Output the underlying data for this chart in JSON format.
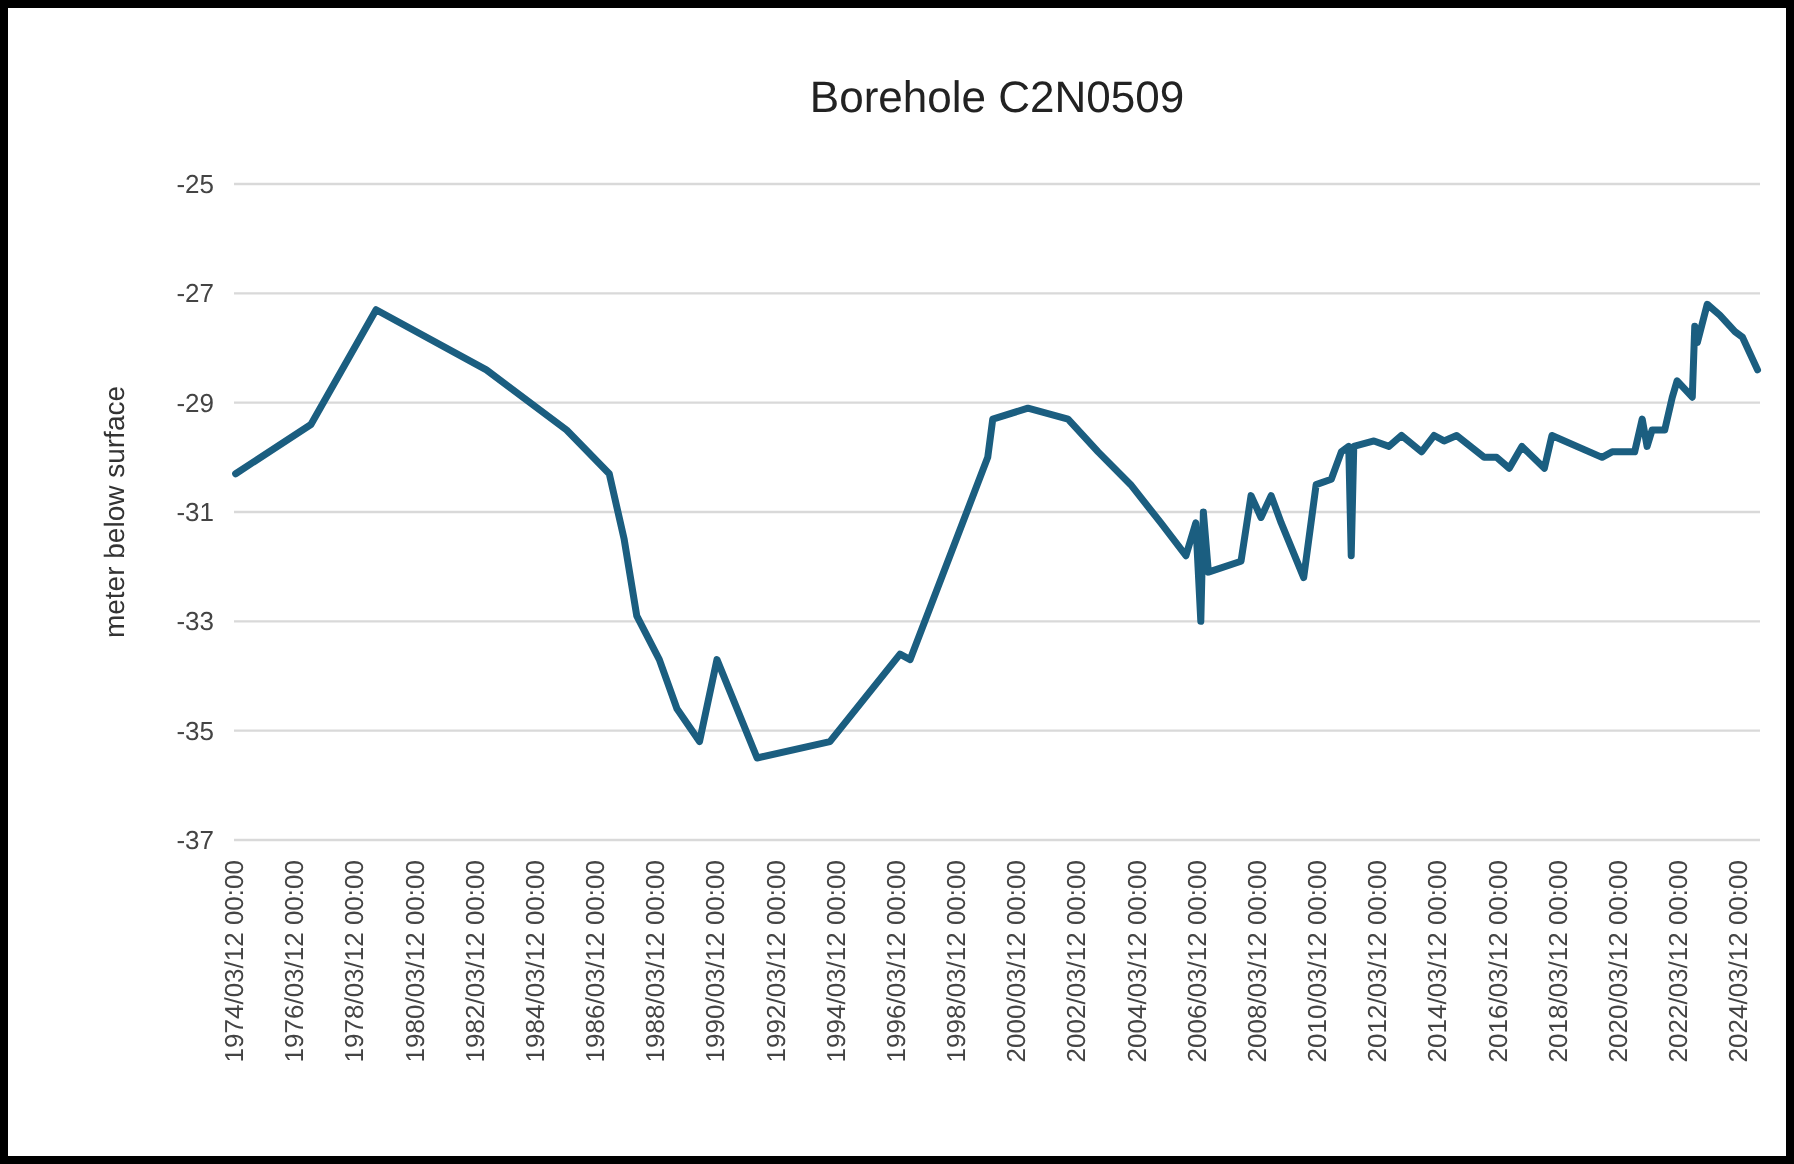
{
  "chart_data": {
    "type": "line",
    "title": "Borehole C2N0509",
    "ylabel": "meter below surface",
    "xlim": [
      "1974-03-12",
      "2024-12-01"
    ],
    "ylim": [
      -37,
      -25
    ],
    "yticks": [
      -37,
      -35,
      -33,
      -31,
      -29,
      -27,
      -25
    ],
    "xticks": [
      {
        "value": "1974-03-12",
        "label": "1974/03/12 00:00"
      },
      {
        "value": "1976-03-12",
        "label": "1976/03/12 00:00"
      },
      {
        "value": "1978-03-12",
        "label": "1978/03/12 00:00"
      },
      {
        "value": "1980-03-12",
        "label": "1980/03/12 00:00"
      },
      {
        "value": "1982-03-12",
        "label": "1982/03/12 00:00"
      },
      {
        "value": "1984-03-12",
        "label": "1984/03/12 00:00"
      },
      {
        "value": "1986-03-12",
        "label": "1986/03/12 00:00"
      },
      {
        "value": "1988-03-12",
        "label": "1988/03/12 00:00"
      },
      {
        "value": "1990-03-12",
        "label": "1990/03/12 00:00"
      },
      {
        "value": "1992-03-12",
        "label": "1992/03/12 00:00"
      },
      {
        "value": "1994-03-12",
        "label": "1994/03/12 00:00"
      },
      {
        "value": "1996-03-12",
        "label": "1996/03/12 00:00"
      },
      {
        "value": "1998-03-12",
        "label": "1998/03/12 00:00"
      },
      {
        "value": "2000-03-12",
        "label": "2000/03/12 00:00"
      },
      {
        "value": "2002-03-12",
        "label": "2002/03/12 00:00"
      },
      {
        "value": "2004-03-12",
        "label": "2004/03/12 00:00"
      },
      {
        "value": "2006-03-12",
        "label": "2006/03/12 00:00"
      },
      {
        "value": "2008-03-12",
        "label": "2008/03/12 00:00"
      },
      {
        "value": "2010-03-12",
        "label": "2010/03/12 00:00"
      },
      {
        "value": "2012-03-12",
        "label": "2012/03/12 00:00"
      },
      {
        "value": "2014-03-12",
        "label": "2014/03/12 00:00"
      },
      {
        "value": "2016-03-12",
        "label": "2016/03/12 00:00"
      },
      {
        "value": "2018-03-12",
        "label": "2018/03/12 00:00"
      },
      {
        "value": "2020-03-12",
        "label": "2020/03/12 00:00"
      },
      {
        "value": "2022-03-12",
        "label": "2022/03/12 00:00"
      },
      {
        "value": "2024-03-12",
        "label": "2024/03/12 00:00"
      }
    ],
    "grid": "y",
    "marker": "none",
    "line_style": "solid",
    "x": [
      "1974-04",
      "1976-10",
      "1978-12",
      "1982-08",
      "1985-04",
      "1986-09",
      "1987-03",
      "1987-08",
      "1988-05",
      "1988-12",
      "1989-09",
      "1990-04",
      "1991-08",
      "1994-01",
      "1996-05",
      "1996-09",
      "1999-04",
      "1999-06",
      "2000-08",
      "2001-12",
      "2002-12",
      "2004-01",
      "2005-01",
      "2005-11",
      "2006-03",
      "2006-05",
      "2006-06",
      "2006-08",
      "2007-09",
      "2008-01",
      "2008-05",
      "2008-09",
      "2009-01",
      "2009-10",
      "2010-03",
      "2010-09",
      "2011-01",
      "2011-04",
      "2011-05",
      "2011-06",
      "2012-02",
      "2012-08",
      "2013-01",
      "2013-09",
      "2014-02",
      "2014-06",
      "2014-11",
      "2015-10",
      "2016-03",
      "2016-08",
      "2017-01",
      "2017-10",
      "2018-01",
      "2019-09",
      "2020-01",
      "2020-10",
      "2021-01",
      "2021-03",
      "2021-05",
      "2021-10",
      "2022-01",
      "2022-03",
      "2022-09",
      "2022-10",
      "2022-11",
      "2023-03",
      "2023-08",
      "2024-02",
      "2024-05",
      "2024-11"
    ],
    "series": [
      {
        "color": "#1b5e80",
        "values": [
          -30.3,
          -29.4,
          -27.3,
          -28.4,
          -29.5,
          -30.3,
          -31.5,
          -32.9,
          -33.7,
          -34.6,
          -35.2,
          -33.7,
          -35.5,
          -35.2,
          -33.6,
          -33.7,
          -30.0,
          -29.3,
          -29.1,
          -29.3,
          -29.9,
          -30.5,
          -31.2,
          -31.8,
          -31.2,
          -33.0,
          -31.0,
          -32.1,
          -31.9,
          -30.7,
          -31.1,
          -30.7,
          -31.2,
          -32.2,
          -30.5,
          -30.4,
          -29.9,
          -29.8,
          -31.8,
          -29.8,
          -29.7,
          -29.8,
          -29.6,
          -29.9,
          -29.6,
          -29.7,
          -29.6,
          -30.0,
          -30.0,
          -30.2,
          -29.8,
          -30.2,
          -29.6,
          -30.0,
          -29.9,
          -29.9,
          -29.3,
          -29.8,
          -29.5,
          -29.5,
          -28.9,
          -28.6,
          -28.9,
          -27.6,
          -27.9,
          -27.2,
          -27.4,
          -27.7,
          -27.8,
          -28.4
        ]
      }
    ]
  }
}
